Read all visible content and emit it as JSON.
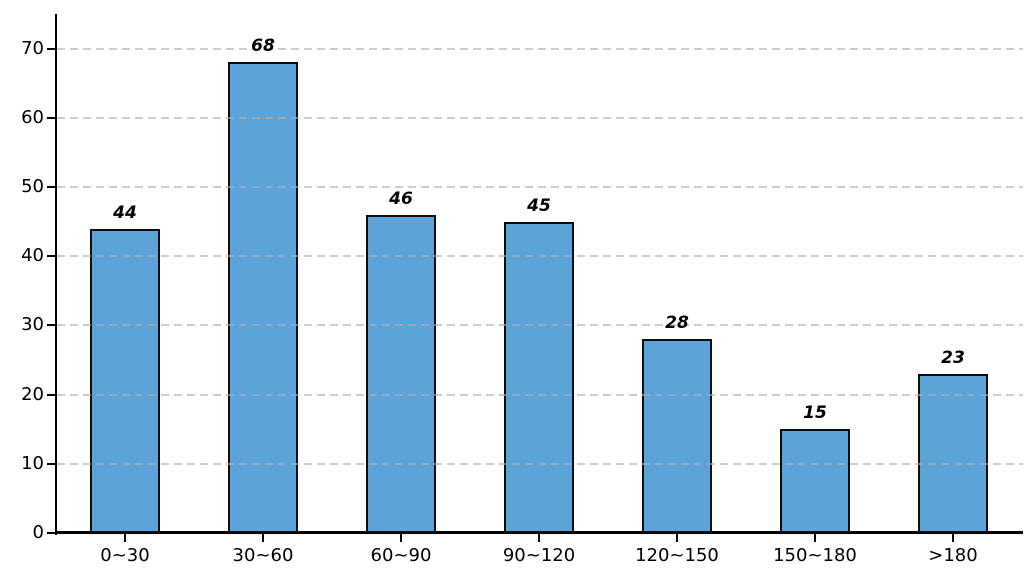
{
  "chart_data": {
    "type": "bar",
    "title": "",
    "xlabel": "",
    "ylabel": "",
    "categories": [
      "0~30",
      "30~60",
      "60~90",
      "90~120",
      "120~150",
      "150~180",
      ">180"
    ],
    "values": [
      44,
      68,
      46,
      45,
      28,
      15,
      23
    ],
    "value_labels": [
      "44",
      "68",
      "46",
      "45",
      "28",
      "15",
      "23"
    ],
    "yticks": [
      0,
      10,
      20,
      30,
      40,
      50,
      60,
      70
    ],
    "ylim": [
      0,
      75
    ],
    "grid": true,
    "grid_axis": "y",
    "grid_style": "dashed",
    "legend": null,
    "colors": {
      "bar_fill": "#5BA3D8",
      "bar_edge": "#0d0d0d",
      "grid_line": "rgba(175,175,175,0.62)",
      "axis_line": "#000000",
      "tick_text": "#000000",
      "value_label_text": "#000000"
    }
  }
}
